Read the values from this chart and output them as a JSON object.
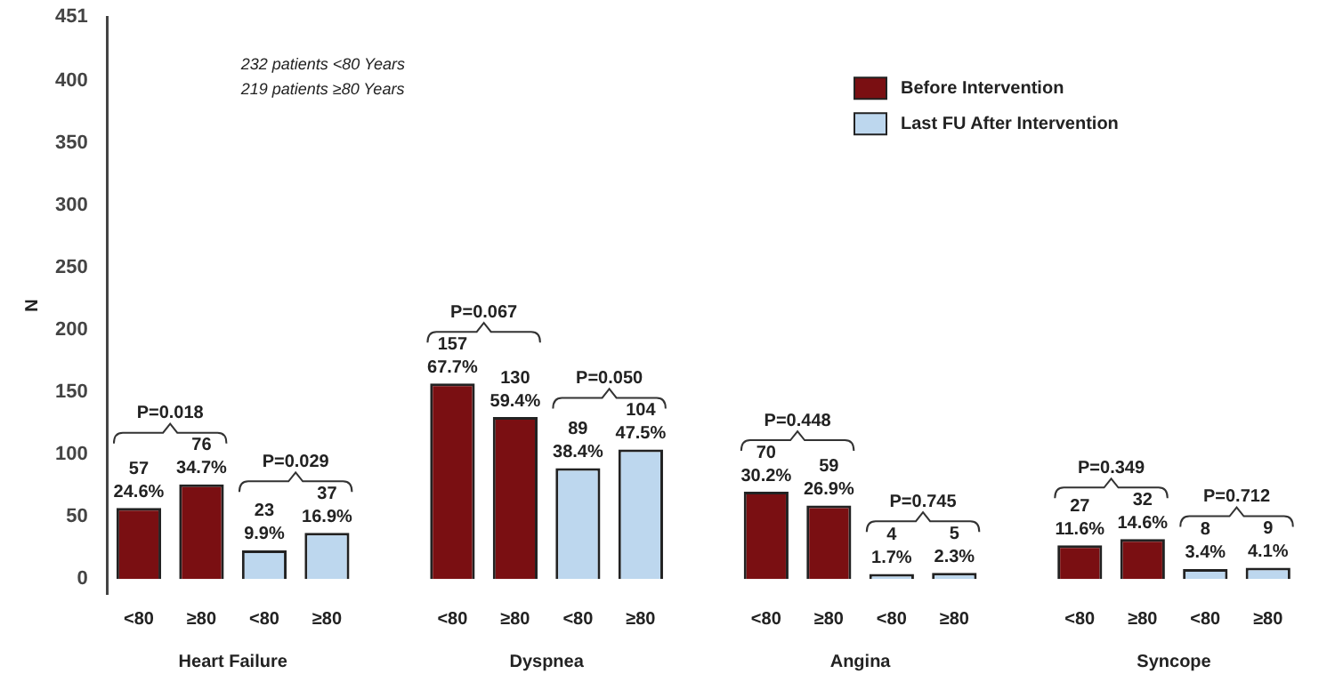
{
  "chart_data": {
    "type": "bar",
    "ylabel": "N",
    "categories": [
      "<80",
      "≥80",
      "<80",
      "≥80",
      null,
      "<80",
      "≥80",
      "<80",
      "≥80",
      null,
      "<80",
      "≥80",
      "<80",
      "≥80",
      null,
      "<80",
      "≥80",
      "<80",
      "≥80"
    ],
    "series": [
      {
        "name": "Before Intervention",
        "color": "#7a0f12",
        "values": [
          57,
          76,
          null,
          null,
          null,
          157,
          130,
          null,
          null,
          null,
          70,
          59,
          null,
          null,
          null,
          27,
          32,
          null,
          null
        ],
        "value_labels": [
          "57\n24.6%",
          "76\n34.7%",
          null,
          null,
          null,
          "157\n67.7%",
          "130\n59.4%",
          null,
          null,
          null,
          "70\n30.2%",
          "59\n26.9%",
          null,
          null,
          null,
          "27\n11.6%",
          "32\n14.6%",
          null,
          null
        ]
      },
      {
        "name": "Last FU After Intervention",
        "color": "#bdd7ee",
        "values": [
          null,
          null,
          23,
          37,
          null,
          null,
          null,
          89,
          104,
          null,
          null,
          null,
          4,
          5,
          null,
          null,
          null,
          8,
          9
        ],
        "value_labels": [
          null,
          null,
          "23\n9.9%",
          "37\n16.9%",
          null,
          null,
          null,
          "89\n38.4%",
          "104\n47.5%",
          null,
          null,
          null,
          "4\n1.7%",
          "5\n2.3%",
          null,
          null,
          null,
          "8\n3.4%",
          "9\n4.1%"
        ]
      }
    ],
    "ylim": [
      -12,
      451
    ],
    "yticks": [
      0,
      50,
      100,
      150,
      200,
      250,
      300,
      350,
      400,
      451
    ],
    "grid": false,
    "legend": "top right",
    "annotations": [
      "232 patients <80 Years",
      "219 patients ≥80 Years",
      "P=0.018",
      "P=0.029",
      "P=0.067",
      "P=0.050",
      "P=0.448",
      "P=0.745",
      "P=0.349",
      "P=0.712",
      "Heart Failure",
      "Dyspnea",
      "Angina",
      "Syncope"
    ]
  }
}
